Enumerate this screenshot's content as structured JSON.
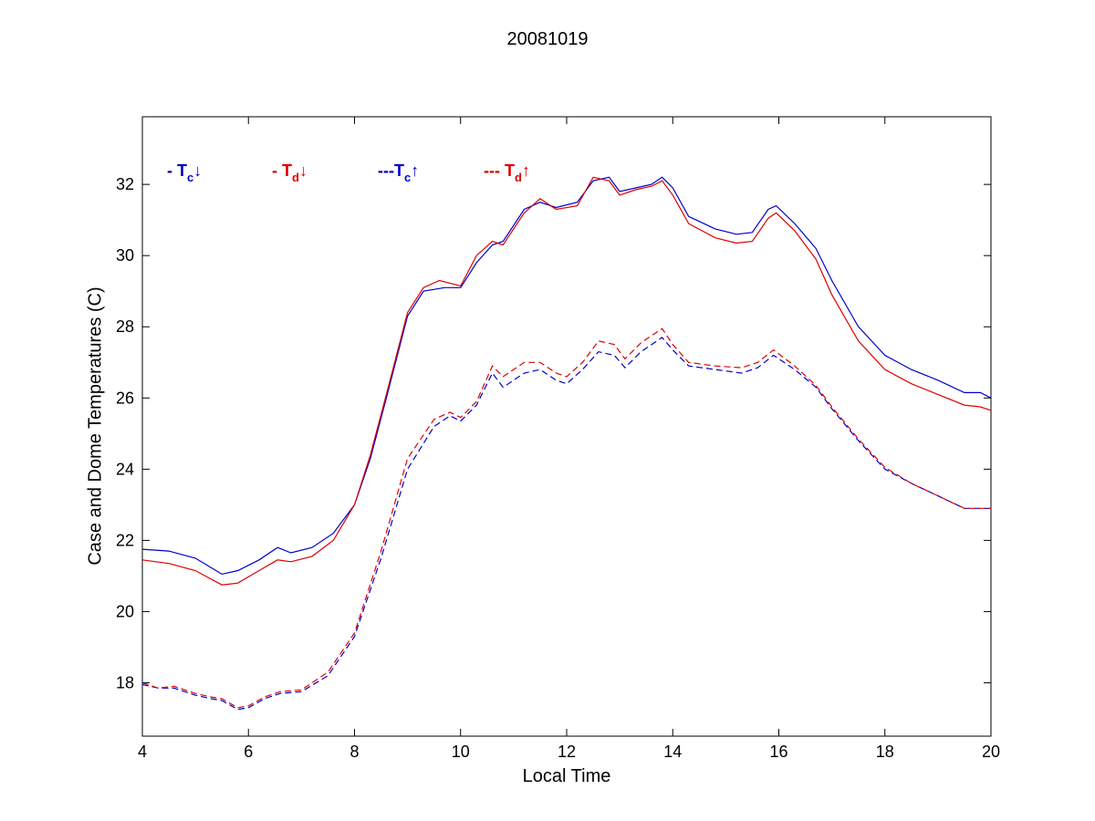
{
  "chart_data": {
    "type": "line",
    "title": "20081019",
    "xlabel": "Local Time",
    "ylabel": "Case and Dome Temperatures (C)",
    "xlim": [
      4,
      20
    ],
    "ylim": [
      16.5,
      33.9
    ],
    "xticks": [
      4,
      6,
      8,
      10,
      12,
      14,
      16,
      18,
      20
    ],
    "yticks": [
      18,
      20,
      22,
      24,
      26,
      28,
      30,
      32
    ],
    "grid": false,
    "legend_position": "top-left inside axes",
    "legend": [
      {
        "name": "- Tc↓",
        "prefix": "- T",
        "sub": "c",
        "arrow": "↓",
        "color": "#0000cc"
      },
      {
        "name": "- Td↓",
        "prefix": "- T",
        "sub": "d",
        "arrow": "↓",
        "color": "#dd0000"
      },
      {
        "name": "---Tc↑",
        "prefix": "---T",
        "sub": "c",
        "arrow": "↑",
        "color": "#0000cc"
      },
      {
        "name": "--- Td↑",
        "prefix": "--- T",
        "sub": "d",
        "arrow": "↑",
        "color": "#dd0000"
      }
    ],
    "series": [
      {
        "name": "- Tc↓",
        "color": "#0000cc",
        "style": "solid",
        "points": [
          [
            4.0,
            21.75
          ],
          [
            4.5,
            21.7
          ],
          [
            5.0,
            21.5
          ],
          [
            5.5,
            21.05
          ],
          [
            5.8,
            21.15
          ],
          [
            6.2,
            21.45
          ],
          [
            6.55,
            21.8
          ],
          [
            6.8,
            21.65
          ],
          [
            7.2,
            21.8
          ],
          [
            7.6,
            22.2
          ],
          [
            8.0,
            23.0
          ],
          [
            8.3,
            24.3
          ],
          [
            8.6,
            26.0
          ],
          [
            9.0,
            28.3
          ],
          [
            9.3,
            29.0
          ],
          [
            9.7,
            29.1
          ],
          [
            10.0,
            29.1
          ],
          [
            10.3,
            29.8
          ],
          [
            10.6,
            30.3
          ],
          [
            10.8,
            30.4
          ],
          [
            11.2,
            31.3
          ],
          [
            11.5,
            31.5
          ],
          [
            11.8,
            31.35
          ],
          [
            12.2,
            31.5
          ],
          [
            12.5,
            32.1
          ],
          [
            12.8,
            32.2
          ],
          [
            13.0,
            31.8
          ],
          [
            13.3,
            31.9
          ],
          [
            13.6,
            32.0
          ],
          [
            13.8,
            32.2
          ],
          [
            14.0,
            31.9
          ],
          [
            14.3,
            31.1
          ],
          [
            14.8,
            30.75
          ],
          [
            15.2,
            30.6
          ],
          [
            15.5,
            30.65
          ],
          [
            15.8,
            31.3
          ],
          [
            15.95,
            31.4
          ],
          [
            16.3,
            30.9
          ],
          [
            16.7,
            30.2
          ],
          [
            17.0,
            29.3
          ],
          [
            17.5,
            28.0
          ],
          [
            18.0,
            27.2
          ],
          [
            18.5,
            26.8
          ],
          [
            19.0,
            26.5
          ],
          [
            19.5,
            26.15
          ],
          [
            19.8,
            26.15
          ],
          [
            20.0,
            26.0
          ]
        ]
      },
      {
        "name": "- Td↓",
        "color": "#dd0000",
        "style": "solid",
        "points": [
          [
            4.0,
            21.45
          ],
          [
            4.5,
            21.35
          ],
          [
            5.0,
            21.15
          ],
          [
            5.5,
            20.75
          ],
          [
            5.8,
            20.8
          ],
          [
            6.2,
            21.15
          ],
          [
            6.55,
            21.45
          ],
          [
            6.8,
            21.4
          ],
          [
            7.2,
            21.55
          ],
          [
            7.6,
            22.0
          ],
          [
            8.0,
            23.0
          ],
          [
            8.3,
            24.4
          ],
          [
            8.6,
            26.1
          ],
          [
            9.0,
            28.4
          ],
          [
            9.3,
            29.1
          ],
          [
            9.6,
            29.3
          ],
          [
            10.0,
            29.15
          ],
          [
            10.3,
            30.0
          ],
          [
            10.6,
            30.4
          ],
          [
            10.8,
            30.3
          ],
          [
            11.2,
            31.2
          ],
          [
            11.5,
            31.6
          ],
          [
            11.8,
            31.3
          ],
          [
            12.2,
            31.4
          ],
          [
            12.5,
            32.2
          ],
          [
            12.8,
            32.1
          ],
          [
            13.0,
            31.7
          ],
          [
            13.3,
            31.85
          ],
          [
            13.6,
            31.95
          ],
          [
            13.8,
            32.1
          ],
          [
            14.0,
            31.7
          ],
          [
            14.3,
            30.9
          ],
          [
            14.8,
            30.5
          ],
          [
            15.2,
            30.35
          ],
          [
            15.5,
            30.4
          ],
          [
            15.8,
            31.05
          ],
          [
            15.95,
            31.2
          ],
          [
            16.3,
            30.7
          ],
          [
            16.7,
            29.9
          ],
          [
            17.0,
            28.9
          ],
          [
            17.5,
            27.6
          ],
          [
            18.0,
            26.8
          ],
          [
            18.5,
            26.4
          ],
          [
            19.0,
            26.1
          ],
          [
            19.5,
            25.8
          ],
          [
            19.8,
            25.75
          ],
          [
            20.0,
            25.65
          ]
        ]
      },
      {
        "name": "---Tc↑",
        "color": "#0000cc",
        "style": "dashed",
        "points": [
          [
            4.0,
            17.95
          ],
          [
            4.3,
            17.85
          ],
          [
            4.6,
            17.85
          ],
          [
            5.0,
            17.65
          ],
          [
            5.3,
            17.55
          ],
          [
            5.5,
            17.5
          ],
          [
            5.8,
            17.25
          ],
          [
            6.0,
            17.3
          ],
          [
            6.3,
            17.55
          ],
          [
            6.6,
            17.7
          ],
          [
            7.0,
            17.75
          ],
          [
            7.5,
            18.2
          ],
          [
            8.0,
            19.3
          ],
          [
            8.5,
            21.5
          ],
          [
            9.0,
            24.0
          ],
          [
            9.5,
            25.2
          ],
          [
            9.8,
            25.5
          ],
          [
            10.0,
            25.35
          ],
          [
            10.3,
            25.8
          ],
          [
            10.6,
            26.7
          ],
          [
            10.8,
            26.3
          ],
          [
            11.2,
            26.7
          ],
          [
            11.5,
            26.8
          ],
          [
            11.8,
            26.5
          ],
          [
            12.0,
            26.4
          ],
          [
            12.3,
            26.8
          ],
          [
            12.6,
            27.3
          ],
          [
            12.9,
            27.2
          ],
          [
            13.1,
            26.85
          ],
          [
            13.4,
            27.3
          ],
          [
            13.8,
            27.7
          ],
          [
            14.0,
            27.35
          ],
          [
            14.3,
            26.9
          ],
          [
            14.8,
            26.8
          ],
          [
            15.3,
            26.7
          ],
          [
            15.6,
            26.85
          ],
          [
            15.9,
            27.2
          ],
          [
            16.3,
            26.8
          ],
          [
            16.7,
            26.3
          ],
          [
            17.0,
            25.7
          ],
          [
            17.5,
            24.8
          ],
          [
            18.0,
            24.0
          ],
          [
            18.5,
            23.6
          ],
          [
            19.0,
            23.25
          ],
          [
            19.5,
            22.9
          ],
          [
            20.0,
            22.9
          ]
        ]
      },
      {
        "name": "--- Td↑",
        "color": "#dd0000",
        "style": "dashed",
        "points": [
          [
            4.0,
            18.0
          ],
          [
            4.3,
            17.85
          ],
          [
            4.6,
            17.9
          ],
          [
            5.0,
            17.7
          ],
          [
            5.3,
            17.6
          ],
          [
            5.5,
            17.55
          ],
          [
            5.8,
            17.3
          ],
          [
            6.0,
            17.35
          ],
          [
            6.3,
            17.6
          ],
          [
            6.6,
            17.75
          ],
          [
            7.0,
            17.8
          ],
          [
            7.5,
            18.3
          ],
          [
            8.0,
            19.4
          ],
          [
            8.5,
            21.7
          ],
          [
            9.0,
            24.3
          ],
          [
            9.5,
            25.4
          ],
          [
            9.8,
            25.6
          ],
          [
            10.0,
            25.45
          ],
          [
            10.3,
            25.9
          ],
          [
            10.6,
            26.9
          ],
          [
            10.8,
            26.6
          ],
          [
            11.2,
            27.0
          ],
          [
            11.5,
            27.0
          ],
          [
            11.8,
            26.7
          ],
          [
            12.0,
            26.6
          ],
          [
            12.3,
            27.0
          ],
          [
            12.6,
            27.6
          ],
          [
            12.9,
            27.5
          ],
          [
            13.1,
            27.1
          ],
          [
            13.4,
            27.55
          ],
          [
            13.8,
            27.95
          ],
          [
            14.0,
            27.5
          ],
          [
            14.3,
            27.0
          ],
          [
            14.8,
            26.9
          ],
          [
            15.3,
            26.85
          ],
          [
            15.6,
            27.0
          ],
          [
            15.9,
            27.35
          ],
          [
            16.3,
            26.9
          ],
          [
            16.7,
            26.35
          ],
          [
            17.0,
            25.75
          ],
          [
            17.5,
            24.85
          ],
          [
            18.0,
            24.05
          ],
          [
            18.5,
            23.6
          ],
          [
            19.0,
            23.25
          ],
          [
            19.5,
            22.9
          ],
          [
            20.0,
            22.9
          ]
        ]
      }
    ]
  }
}
